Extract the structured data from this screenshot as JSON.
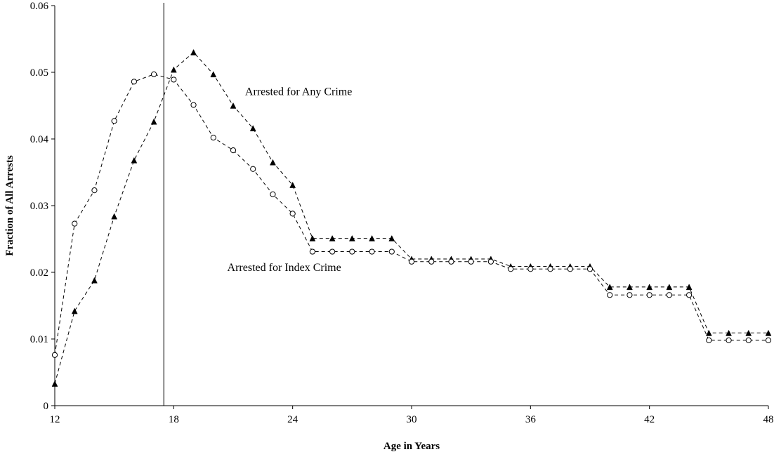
{
  "chart_data": {
    "type": "line",
    "title": "",
    "xlabel": "Age in Years",
    "ylabel": "Fraction of All Arrests",
    "xlim": [
      12,
      48
    ],
    "ylim": [
      0,
      0.06
    ],
    "x_ticks": [
      "12",
      "18",
      "24",
      "30",
      "36",
      "42",
      "48"
    ],
    "y_ticks": [
      "0",
      "0.01",
      "0.02",
      "0.03",
      "0.04",
      "0.05",
      "0.06"
    ],
    "grid": false,
    "legend": "none",
    "reference_line_x": 17.5,
    "x": [
      12,
      13,
      14,
      15,
      16,
      17,
      18,
      19,
      20,
      21,
      22,
      23,
      24,
      25,
      26,
      27,
      28,
      29,
      30,
      31,
      32,
      33,
      34,
      35,
      36,
      37,
      38,
      39,
      40,
      41,
      42,
      43,
      44,
      45,
      46,
      47,
      48
    ],
    "series": [
      {
        "marker": "filled-triangle",
        "values": [
          0.0033,
          0.0142,
          0.0188,
          0.0284,
          0.0368,
          0.0426,
          0.0504,
          0.053,
          0.0497,
          0.045,
          0.0416,
          0.0365,
          0.0331,
          0.0251,
          0.0251,
          0.0251,
          0.0251,
          0.0251,
          0.022,
          0.022,
          0.022,
          0.022,
          0.022,
          0.0209,
          0.0209,
          0.0209,
          0.0209,
          0.0209,
          0.0178,
          0.0178,
          0.0178,
          0.0178,
          0.0178,
          0.0109,
          0.0109,
          0.0109,
          0.0109
        ]
      },
      {
        "marker": "open-circle",
        "values": [
          0.0076,
          0.0273,
          0.0323,
          0.0427,
          0.0486,
          0.0497,
          0.0489,
          0.0451,
          0.0402,
          0.0383,
          0.0355,
          0.0317,
          0.0288,
          0.0231,
          0.0231,
          0.0231,
          0.0231,
          0.0231,
          0.0216,
          0.0216,
          0.0216,
          0.0216,
          0.0216,
          0.0205,
          0.0205,
          0.0205,
          0.0205,
          0.0205,
          0.0166,
          0.0166,
          0.0166,
          0.0166,
          0.0166,
          0.0098,
          0.0098,
          0.0098,
          0.0098
        ]
      }
    ],
    "annotations": [
      {
        "text": "Arrested for Any Crime",
        "x": 21.6,
        "y": 0.0466
      },
      {
        "text": "Arrested for Index Crime",
        "x": 20.7,
        "y": 0.0202
      }
    ]
  }
}
